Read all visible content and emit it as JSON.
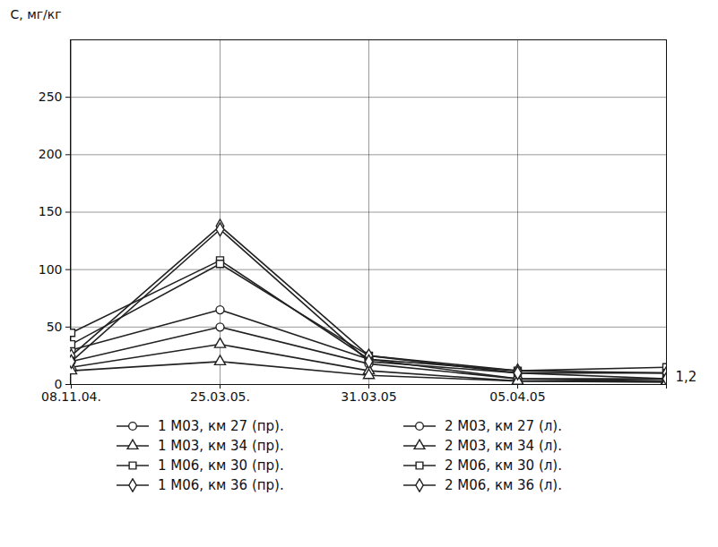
{
  "chart_data": {
    "type": "line",
    "y_label": "C, мг/кг",
    "categories": [
      "08.11.04.",
      "25.03.05.",
      "31.03.05",
      "05.04.05",
      null
    ],
    "series": [
      {
        "name": "1 М03, км 27 (пр).",
        "color": "#222222",
        "marker": "circle",
        "line_style": "solid",
        "values": [
          30,
          65,
          22,
          5,
          5
        ]
      },
      {
        "name": "2 М03, км 27 (л).",
        "color": "#222222",
        "marker": "circle",
        "line_style": "solid",
        "values": [
          20,
          50,
          18,
          5,
          3
        ]
      },
      {
        "name": "1 М03, км 34 (пр).",
        "color": "#222222",
        "marker": "triangle",
        "line_style": "solid",
        "values": [
          15,
          35,
          12,
          3,
          3
        ]
      },
      {
        "name": "2 М03, км 34 (л).",
        "color": "#222222",
        "marker": "triangle",
        "line_style": "solid",
        "values": [
          12,
          20,
          8,
          3,
          2
        ]
      },
      {
        "name": "1 М06, км 30 (пр).",
        "color": "#222222",
        "marker": "square",
        "line_style": "solid",
        "values": [
          45,
          108,
          22,
          12,
          15
        ]
      },
      {
        "name": "2 М06, км 30 (л).",
        "color": "#222222",
        "marker": "square",
        "line_style": "solid",
        "values": [
          35,
          105,
          25,
          10,
          10
        ]
      },
      {
        "name": "1 М06, км 36 (пр).",
        "color": "#222222",
        "marker": "diamond",
        "line_style": "solid",
        "values": [
          25,
          138,
          25,
          12,
          10
        ]
      },
      {
        "name": "2 М06, км 36 (л).",
        "color": "#222222",
        "marker": "diamond",
        "line_style": "solid",
        "values": [
          20,
          135,
          20,
          10,
          5
        ]
      }
    ],
    "annotation": "1,2",
    "ylim": [
      0,
      300
    ],
    "yticks": [
      0,
      50,
      100,
      150,
      200,
      250
    ],
    "grid": true,
    "legend": "bottom"
  }
}
